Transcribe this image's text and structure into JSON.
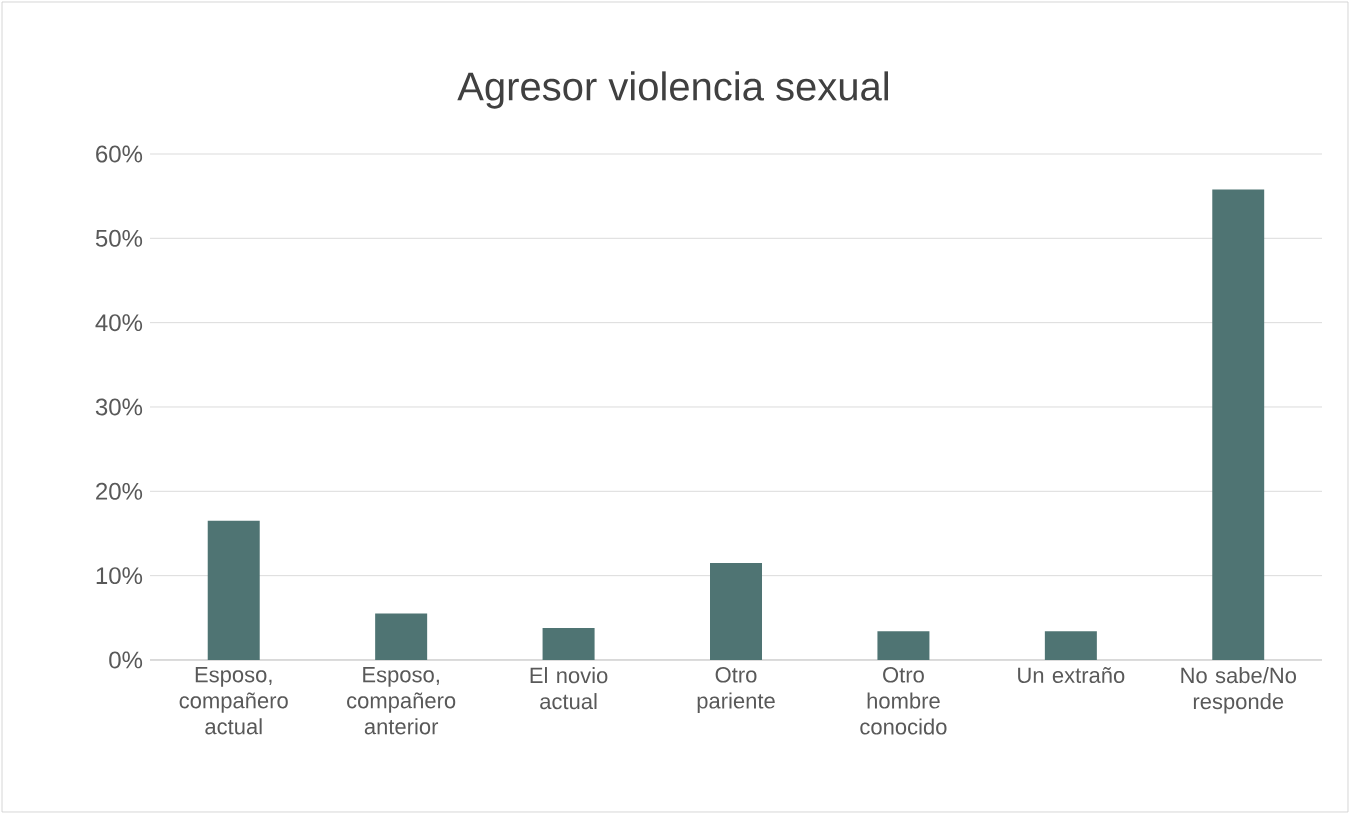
{
  "chart_data": {
    "type": "bar",
    "title": "Agresor violencia sexual",
    "categories": [
      "Esposo, compañero actual",
      "Esposo, compañero anterior",
      "El novio actual",
      "Otro pariente",
      "Otro hombre conocido",
      "Un extraño",
      "No sabe/No responde"
    ],
    "values": [
      16.5,
      5.5,
      3.8,
      11.5,
      3.4,
      3.4,
      55.8
    ],
    "color": "#4f7473",
    "ylim": [
      0,
      60
    ],
    "yticks": [
      {
        "value": 0,
        "label": "0%"
      },
      {
        "value": 10,
        "label": "10%"
      },
      {
        "value": 20,
        "label": "20%"
      },
      {
        "value": 30,
        "label": "30%"
      },
      {
        "value": 40,
        "label": "40%"
      },
      {
        "value": 50,
        "label": "50%"
      },
      {
        "value": 60,
        "label": "60%"
      }
    ],
    "grid": "y"
  }
}
